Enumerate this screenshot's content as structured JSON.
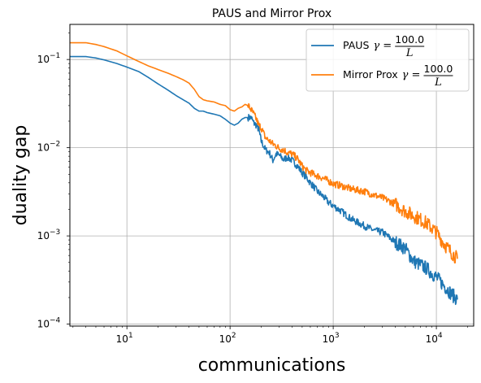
{
  "chart_data": {
    "type": "line",
    "title": "PAUS and Mirror Prox",
    "xlabel": "communications",
    "ylabel": "duality gap",
    "xscale": "log",
    "yscale": "log",
    "xlim": [
      2.8,
      23000
    ],
    "ylim": [
      9.5e-05,
      0.25
    ],
    "grid": true,
    "legend_position": "top-right",
    "x_ticks": [
      {
        "value": 10,
        "base": "10",
        "exp": "1"
      },
      {
        "value": 100,
        "base": "10",
        "exp": "2"
      },
      {
        "value": 1000,
        "base": "10",
        "exp": "3"
      },
      {
        "value": 10000,
        "base": "10",
        "exp": "4"
      }
    ],
    "y_ticks": [
      {
        "value": 0.0001,
        "base": "10",
        "exp": "−4"
      },
      {
        "value": 0.001,
        "base": "10",
        "exp": "−3"
      },
      {
        "value": 0.01,
        "base": "10",
        "exp": "−2"
      },
      {
        "value": 0.1,
        "base": "10",
        "exp": "−1"
      }
    ],
    "series": [
      {
        "name": "PAUS",
        "legend_math": "γ =",
        "legend_num": "100.0",
        "legend_den": "L",
        "color": "#1f77b4",
        "x": [
          2.8,
          4,
          5,
          6,
          8,
          10,
          13,
          16,
          20,
          25,
          30,
          35,
          40,
          45,
          50,
          55,
          60,
          70,
          80,
          90,
          100,
          110,
          120,
          130,
          140,
          150,
          160,
          170,
          180,
          190,
          200,
          220,
          240,
          260,
          280,
          300,
          330,
          360,
          400,
          450,
          500,
          550,
          600,
          650,
          700,
          800,
          900,
          1000,
          1200,
          1500,
          2000,
          2500,
          3000,
          4000,
          5000,
          6000,
          8000,
          10000,
          12000,
          14000,
          16000
        ],
        "y": [
          0.108,
          0.108,
          0.104,
          0.099,
          0.09,
          0.082,
          0.073,
          0.063,
          0.053,
          0.045,
          0.039,
          0.035,
          0.032,
          0.028,
          0.026,
          0.026,
          0.025,
          0.024,
          0.023,
          0.021,
          0.019,
          0.018,
          0.019,
          0.021,
          0.022,
          0.022,
          0.022,
          0.019,
          0.018,
          0.016,
          0.012,
          0.0095,
          0.0088,
          0.0072,
          0.0085,
          0.0082,
          0.0073,
          0.0078,
          0.0072,
          0.0062,
          0.0052,
          0.0046,
          0.004,
          0.0036,
          0.0032,
          0.0028,
          0.0024,
          0.0022,
          0.0019,
          0.00155,
          0.0013,
          0.00115,
          0.0011,
          0.00085,
          0.00072,
          0.00052,
          0.00043,
          0.00034,
          0.00027,
          0.00022,
          0.00019
        ]
      },
      {
        "name": "Mirror Prox",
        "legend_math": "γ =",
        "legend_num": "100.0",
        "legend_den": "L",
        "color": "#ff7f0e",
        "x": [
          2.8,
          4,
          5,
          6,
          8,
          10,
          13,
          16,
          20,
          25,
          30,
          35,
          40,
          45,
          50,
          55,
          60,
          70,
          80,
          90,
          100,
          110,
          120,
          130,
          140,
          150,
          160,
          170,
          180,
          190,
          200,
          220,
          240,
          260,
          280,
          300,
          330,
          360,
          400,
          450,
          500,
          550,
          600,
          650,
          700,
          800,
          900,
          1000,
          1200,
          1500,
          2000,
          2500,
          3000,
          4000,
          5000,
          6000,
          8000,
          10000,
          12000,
          14000,
          16000
        ],
        "y": [
          0.155,
          0.155,
          0.148,
          0.14,
          0.125,
          0.11,
          0.095,
          0.085,
          0.077,
          0.07,
          0.064,
          0.059,
          0.054,
          0.046,
          0.038,
          0.035,
          0.034,
          0.033,
          0.031,
          0.03,
          0.027,
          0.026,
          0.028,
          0.029,
          0.031,
          0.03,
          0.027,
          0.024,
          0.021,
          0.018,
          0.017,
          0.013,
          0.012,
          0.011,
          0.0105,
          0.0098,
          0.0095,
          0.0088,
          0.0085,
          0.0075,
          0.0062,
          0.0055,
          0.0052,
          0.005,
          0.0048,
          0.0045,
          0.0042,
          0.0039,
          0.0037,
          0.0034,
          0.0032,
          0.0029,
          0.0027,
          0.0023,
          0.0019,
          0.0017,
          0.0014,
          0.0011,
          0.0008,
          0.00065,
          0.00055
        ]
      }
    ]
  }
}
